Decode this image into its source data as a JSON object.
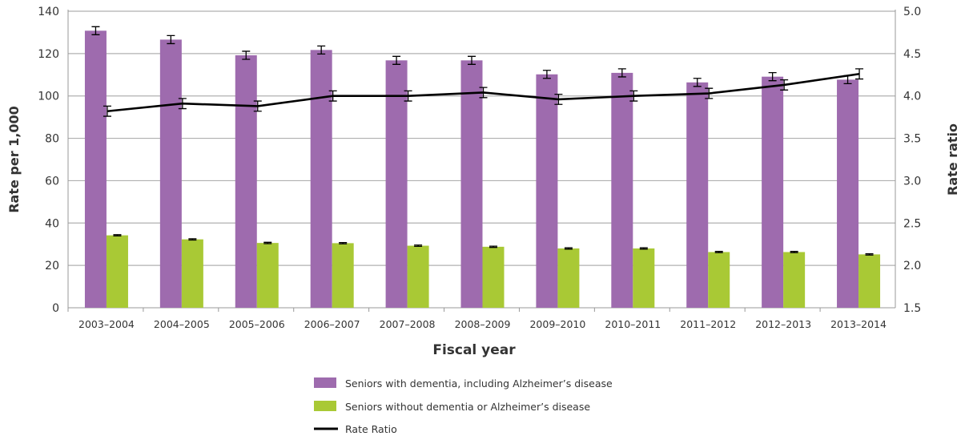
{
  "chart_data": {
    "type": "bar",
    "xlabel": "Fiscal year",
    "ylabel": "Rate per 1,000",
    "y2label": "Rate ratio",
    "ylim": [
      0,
      140
    ],
    "y2lim": [
      1.5,
      5.0
    ],
    "yticks": [
      "0",
      "20",
      "40",
      "60",
      "80",
      "100",
      "120",
      "140"
    ],
    "y2ticks": [
      "1.5",
      "2.0",
      "2.5",
      "3.0",
      "3.5",
      "4.0",
      "4.5",
      "5.0"
    ],
    "grid": true,
    "legend_position": "bottom",
    "categories": [
      "2003–2004",
      "2004–2005",
      "2005–2006",
      "2006–2007",
      "2007–2008",
      "2008–2009",
      "2009–2010",
      "2010–2011",
      "2011–2012",
      "2012–2013",
      "2013–2014"
    ],
    "series": [
      {
        "name": "Seniors with dementia, including Alzheimer’s disease",
        "type": "bar",
        "axis": "left",
        "color": "#9e6bae",
        "values": [
          130.8,
          126.6,
          119.2,
          121.7,
          116.8,
          116.8,
          110.2,
          110.9,
          106.4,
          109.1,
          107.7
        ],
        "error": 1.9
      },
      {
        "name": "Seniors without dementia or Alzheimer’s disease",
        "type": "bar",
        "axis": "left",
        "color": "#a9c935",
        "values": [
          34.2,
          32.3,
          30.6,
          30.5,
          29.3,
          28.8,
          28.0,
          28.0,
          26.3,
          26.3,
          25.2
        ],
        "error": 0.3
      },
      {
        "name": "Rate Ratio",
        "type": "line",
        "axis": "right",
        "color": "#000000",
        "values": [
          3.82,
          3.91,
          3.88,
          4.0,
          4.0,
          4.04,
          3.96,
          4.0,
          4.03,
          4.13,
          4.26
        ],
        "error": 0.06
      }
    ]
  }
}
